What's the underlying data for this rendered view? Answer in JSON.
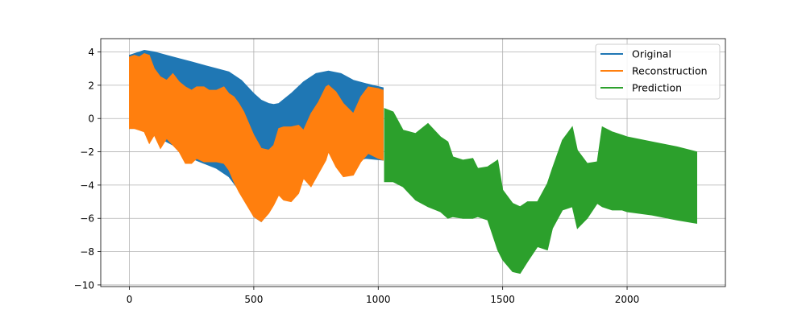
{
  "chart_data": {
    "type": "area",
    "grid": true,
    "legend_position": "top-right",
    "xlim": [
      -115,
      2395
    ],
    "ylim": [
      -10.1,
      4.8
    ],
    "x_ticks": [
      {
        "value": 0,
        "label": "0"
      },
      {
        "value": 500,
        "label": "500"
      },
      {
        "value": 1000,
        "label": "1000"
      },
      {
        "value": 1500,
        "label": "1500"
      },
      {
        "value": 2000,
        "label": "2000"
      }
    ],
    "y_ticks": [
      {
        "value": 4,
        "label": "4"
      },
      {
        "value": 2,
        "label": "2"
      },
      {
        "value": 0,
        "label": "0"
      },
      {
        "value": -2,
        "label": "−2"
      },
      {
        "value": -4,
        "label": "−4"
      },
      {
        "value": -6,
        "label": "−6"
      },
      {
        "value": -8,
        "label": "−8"
      },
      {
        "value": -10,
        "label": "−10"
      }
    ],
    "series": [
      {
        "name": "Original",
        "color": "#1f77b4",
        "x": [
          0,
          20,
          60,
          100,
          150,
          200,
          250,
          300,
          350,
          400,
          450,
          500,
          530,
          560,
          580,
          600,
          650,
          700,
          750,
          800,
          850,
          900,
          950,
          1020
        ],
        "upper": [
          3.8,
          3.9,
          4.1,
          4.0,
          3.8,
          3.6,
          3.4,
          3.2,
          3.0,
          2.8,
          2.3,
          1.5,
          1.1,
          0.9,
          0.85,
          0.9,
          1.5,
          2.2,
          2.7,
          2.85,
          2.7,
          2.3,
          2.1,
          1.85
        ],
        "lower": [
          -0.6,
          -0.6,
          -0.7,
          -1.0,
          -1.4,
          -1.8,
          -2.4,
          -2.7,
          -3.0,
          -3.5,
          -4.5,
          -5.9,
          -6.2,
          -5.6,
          -5.0,
          -4.4,
          -3.8,
          -3.0,
          -2.4,
          -2.0,
          -2.4,
          -2.6,
          -2.4,
          -2.5
        ]
      },
      {
        "name": "Reconstruction",
        "color": "#ff7f0e",
        "x": [
          0,
          20,
          40,
          60,
          80,
          100,
          125,
          150,
          175,
          200,
          225,
          250,
          270,
          300,
          320,
          350,
          380,
          400,
          420,
          440,
          460,
          500,
          530,
          560,
          580,
          600,
          620,
          650,
          680,
          700,
          730,
          760,
          790,
          800,
          830,
          860,
          900,
          930,
          960,
          1000,
          1020
        ],
        "upper": [
          3.7,
          3.8,
          3.7,
          3.9,
          3.8,
          3.0,
          2.5,
          2.3,
          2.7,
          2.2,
          1.9,
          1.7,
          1.9,
          1.9,
          1.7,
          1.7,
          1.9,
          1.5,
          1.3,
          0.9,
          0.4,
          -1.0,
          -1.8,
          -1.9,
          -1.6,
          -0.6,
          -0.5,
          -0.5,
          -0.4,
          -0.7,
          0.3,
          1.0,
          1.9,
          2.0,
          1.6,
          0.9,
          0.3,
          1.3,
          1.9,
          1.8,
          1.7
        ],
        "lower": [
          -0.6,
          -0.6,
          -0.7,
          -0.8,
          -1.5,
          -1.0,
          -1.8,
          -1.2,
          -1.6,
          -2.0,
          -2.7,
          -2.7,
          -2.4,
          -2.6,
          -2.6,
          -2.6,
          -2.7,
          -3.1,
          -3.8,
          -4.4,
          -4.9,
          -5.9,
          -6.2,
          -5.7,
          -5.2,
          -4.6,
          -4.9,
          -5.0,
          -4.5,
          -3.6,
          -4.1,
          -3.3,
          -2.5,
          -2.0,
          -2.9,
          -3.5,
          -3.4,
          -2.6,
          -2.1,
          -2.4,
          -2.5
        ]
      },
      {
        "name": "Prediction",
        "color": "#2ca02c",
        "x": [
          1025,
          1060,
          1100,
          1150,
          1200,
          1250,
          1280,
          1300,
          1340,
          1380,
          1400,
          1440,
          1480,
          1500,
          1540,
          1570,
          1600,
          1640,
          1680,
          1700,
          1740,
          1780,
          1800,
          1840,
          1880,
          1900,
          1940,
          1980,
          2000,
          2100,
          2200,
          2280
        ],
        "upper": [
          0.6,
          0.4,
          -0.7,
          -0.9,
          -0.3,
          -1.1,
          -1.4,
          -2.3,
          -2.5,
          -2.4,
          -3.0,
          -2.9,
          -2.5,
          -4.3,
          -5.1,
          -5.3,
          -5.0,
          -5.0,
          -3.9,
          -3.0,
          -1.3,
          -0.5,
          -1.9,
          -2.7,
          -2.6,
          -0.5,
          -0.8,
          -1.0,
          -1.1,
          -1.4,
          -1.7,
          -2.0
        ],
        "lower": [
          -3.8,
          -3.8,
          -4.1,
          -4.9,
          -5.3,
          -5.6,
          -6.0,
          -5.9,
          -6.0,
          -6.0,
          -5.9,
          -6.1,
          -7.9,
          -8.5,
          -9.2,
          -9.3,
          -8.6,
          -7.7,
          -7.9,
          -6.6,
          -5.5,
          -5.3,
          -6.6,
          -6.0,
          -5.1,
          -5.3,
          -5.5,
          -5.5,
          -5.6,
          -5.8,
          -6.1,
          -6.3
        ]
      }
    ]
  }
}
